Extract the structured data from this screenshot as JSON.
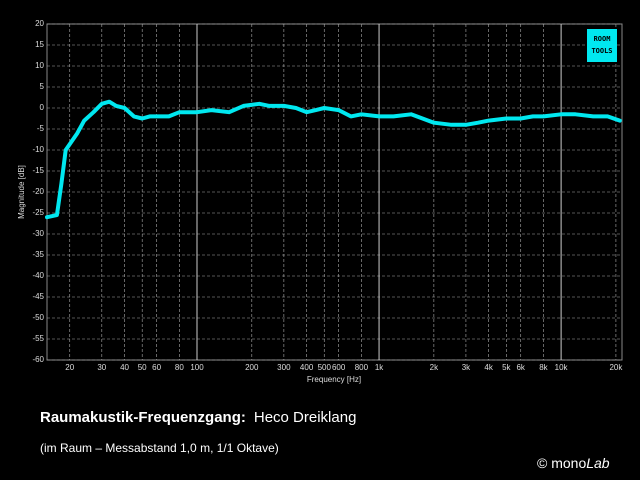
{
  "chart_data": {
    "type": "line",
    "title": "Raumakustik-Frequenzgang:",
    "subtitle": "Heco Dreiklang",
    "note": "(im Raum – Messabstand 1,0 m, 1/1 Oktave)",
    "xlabel": "Frequency [Hz]",
    "ylabel": "Magnitude [dB]",
    "log_x": true,
    "grid": true,
    "xlim": [
      15,
      21600
    ],
    "ylim": [
      -60,
      20
    ],
    "xticks": [
      20,
      30,
      40,
      50,
      60,
      80,
      100,
      200,
      300,
      400,
      500,
      600,
      800,
      {
        "value": 1000,
        "label": "1k"
      },
      {
        "value": 2000,
        "label": "2k"
      },
      {
        "value": 3000,
        "label": "3k"
      },
      {
        "value": 4000,
        "label": "4k"
      },
      {
        "value": 5000,
        "label": "5k"
      },
      {
        "value": 6000,
        "label": "6k"
      },
      {
        "value": 8000,
        "label": "8k"
      },
      {
        "value": 10000,
        "label": "10k"
      },
      {
        "value": 20000,
        "label": "20k"
      }
    ],
    "yticks": [
      20,
      15,
      10,
      5,
      0,
      -5,
      -10,
      -15,
      -20,
      -25,
      -30,
      -35,
      -40,
      -45,
      -50,
      -55,
      -60
    ],
    "x": [
      15,
      17,
      18,
      19,
      22,
      24,
      27,
      30,
      33,
      36,
      40,
      45,
      50,
      55,
      60,
      70,
      80,
      100,
      120,
      150,
      180,
      220,
      250,
      300,
      350,
      400,
      450,
      500,
      600,
      700,
      800,
      1000,
      1200,
      1500,
      2000,
      2500,
      3000,
      3500,
      4000,
      5000,
      6000,
      7000,
      8000,
      10000,
      12000,
      15000,
      18000,
      21000
    ],
    "series": [
      {
        "color": "#00e8f0",
        "values": [
          -26,
          -25.5,
          -18,
          -10,
          -6,
          -3,
          -1,
          1,
          1.5,
          0.5,
          0,
          -2,
          -2.5,
          -2,
          -2,
          -2,
          -1,
          -1,
          -0.5,
          -1,
          0.5,
          1,
          0.5,
          0.5,
          0,
          -1,
          -0.5,
          0,
          -0.5,
          -2,
          -1.5,
          -2,
          -2,
          -1.5,
          -3.5,
          -4,
          -4,
          -3.5,
          -3,
          -2.5,
          -2.5,
          -2,
          -2,
          -1.5,
          -1.5,
          -2,
          -2,
          -3
        ]
      }
    ]
  },
  "logo": {
    "line1": "ROOM",
    "line2": "TOOLS"
  },
  "credit": {
    "text": "© mono",
    "brand": "Lab"
  }
}
